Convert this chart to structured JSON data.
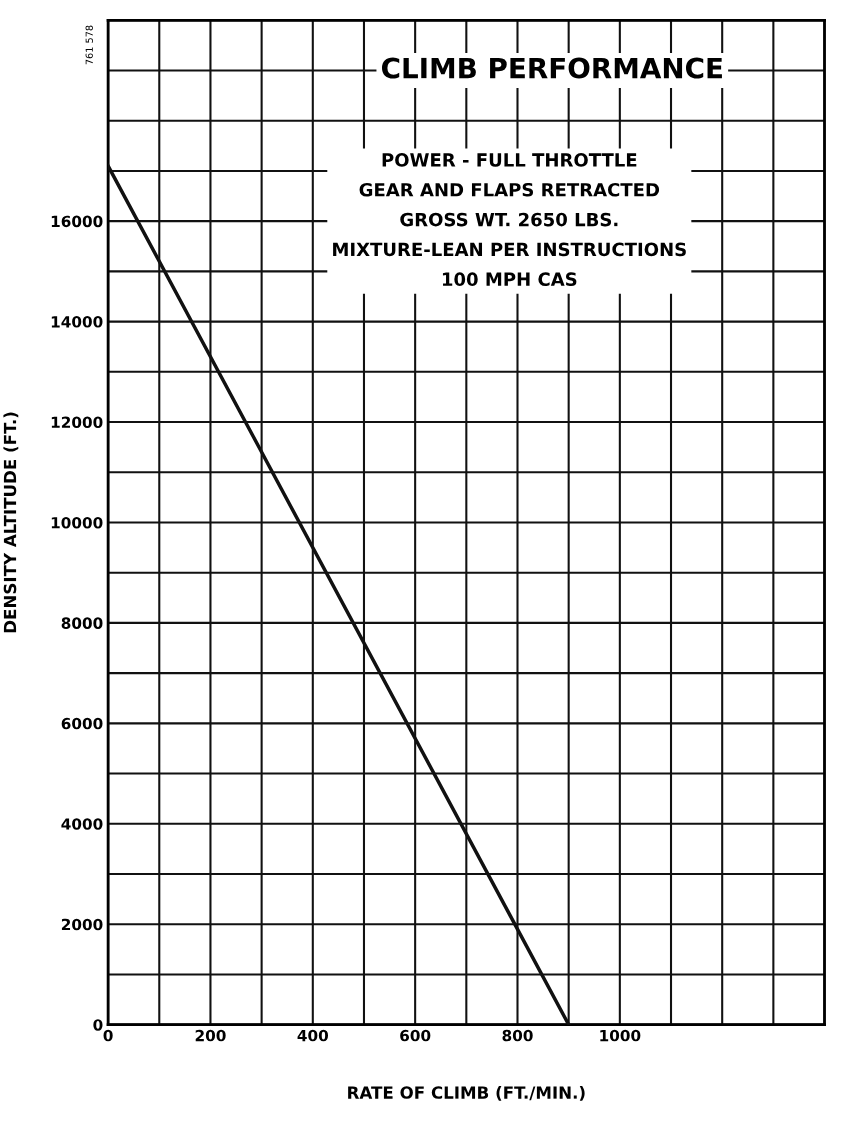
{
  "chart_data": {
    "type": "line",
    "title": "CLIMB PERFORMANCE",
    "subtitle": "POWER - FULL THROTTLE\nGEAR AND FLAPS RETRACTED\nGROSS WT. 2650 LBS.\nMIXTURE-LEAN PER INSTRUCTIONS\n100 MPH CAS",
    "annotations": [
      "761 578"
    ],
    "xlabel": "RATE OF CLIMB (FT./MIN.)",
    "ylabel": "DENSITY ALTITUDE (FT.)",
    "series": [
      {
        "color": "#111111",
        "x": [
          0,
          900
        ],
        "values": [
          17100,
          0
        ]
      }
    ],
    "xlim": [
      0,
      1400
    ],
    "ylim": [
      0,
      20000
    ],
    "xticks": [
      0,
      {
        "value": 100,
        "label": null
      },
      200,
      {
        "value": 300,
        "label": null
      },
      400,
      {
        "value": 500,
        "label": null
      },
      600,
      {
        "value": 700,
        "label": null
      },
      800,
      {
        "value": 900,
        "label": null
      },
      1000,
      {
        "value": 1100,
        "label": null
      },
      {
        "value": 1200,
        "label": null
      },
      {
        "value": 1300,
        "label": null
      },
      {
        "value": 1400,
        "label": null
      }
    ],
    "yticks": [
      0,
      {
        "value": 1000,
        "label": null
      },
      2000,
      {
        "value": 3000,
        "label": null
      },
      4000,
      {
        "value": 5000,
        "label": null
      },
      6000,
      {
        "value": 7000,
        "label": null
      },
      8000,
      {
        "value": 9000,
        "label": null
      },
      10000,
      {
        "value": 11000,
        "label": null
      },
      12000,
      {
        "value": 13000,
        "label": null
      },
      14000,
      {
        "value": 15000,
        "label": null
      },
      16000,
      {
        "value": 17000,
        "label": null
      },
      {
        "value": 18000,
        "label": null
      },
      {
        "value": 19000,
        "label": null
      },
      {
        "value": 20000,
        "label": null
      }
    ],
    "grid": true,
    "marker": "none",
    "line_style": "solid"
  }
}
